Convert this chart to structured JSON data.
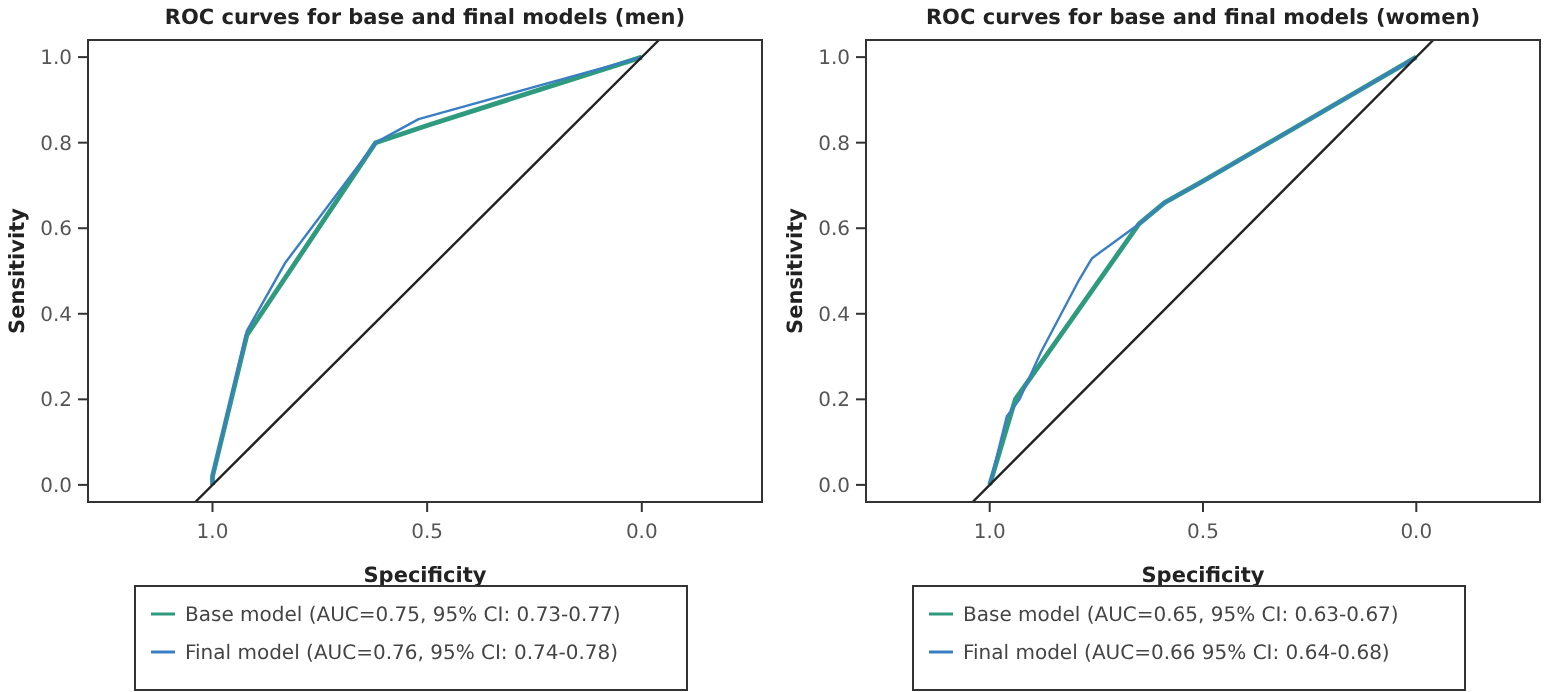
{
  "chart_data": [
    {
      "type": "line",
      "title": "ROC curves for base and final models (men)",
      "xlabel": "Specificity",
      "ylabel": "Sensitivity",
      "xlim": [
        1.29,
        -0.28
      ],
      "ylim": [
        -0.04,
        1.04
      ],
      "xticks": [
        {
          "value": 1.0,
          "label": "1.0"
        },
        {
          "value": 0.5,
          "label": "0.5"
        },
        {
          "value": 0.0,
          "label": "0.0"
        }
      ],
      "yticks": [
        {
          "value": 0.0,
          "label": "0.0"
        },
        {
          "value": 0.2,
          "label": "0.2"
        },
        {
          "value": 0.4,
          "label": "0.4"
        },
        {
          "value": 0.6,
          "label": "0.6"
        },
        {
          "value": 0.8,
          "label": "0.8"
        },
        {
          "value": 1.0,
          "label": "1.0"
        }
      ],
      "grid": false,
      "legend": "bottom",
      "marker": "none",
      "line_style": "solid",
      "series": [
        {
          "name": "Base model (AUC=0.75, 95% CI: 0.73-0.77)",
          "color": "#2e9a7e",
          "x": [
            1.0,
            1.0,
            0.92,
            0.62,
            0.5,
            0.0
          ],
          "values": [
            0.0,
            0.02,
            0.35,
            0.8,
            0.84,
            1.0
          ]
        },
        {
          "name": "Final model (AUC=0.76, 95% CI: 0.74-0.78)",
          "color": "#3a7fc4",
          "x": [
            1.0,
            1.0,
            0.92,
            0.83,
            0.62,
            0.52,
            0.0
          ],
          "values": [
            0.0,
            0.02,
            0.36,
            0.52,
            0.8,
            0.855,
            1.0
          ]
        },
        {
          "color": "#222222",
          "x": [
            1.04,
            -0.04
          ],
          "values": [
            -0.04,
            1.04
          ]
        }
      ]
    },
    {
      "type": "line",
      "title": "ROC curves for base and final models (women)",
      "xlabel": "Specificity",
      "ylabel": "Sensitivity",
      "xlim": [
        1.29,
        -0.29
      ],
      "ylim": [
        -0.04,
        1.04
      ],
      "xticks": [
        {
          "value": 1.0,
          "label": "1.0"
        },
        {
          "value": 0.5,
          "label": "0.5"
        },
        {
          "value": 0.0,
          "label": "0.0"
        }
      ],
      "yticks": [
        {
          "value": 0.0,
          "label": "0.0"
        },
        {
          "value": 0.2,
          "label": "0.2"
        },
        {
          "value": 0.4,
          "label": "0.4"
        },
        {
          "value": 0.6,
          "label": "0.6"
        },
        {
          "value": 0.8,
          "label": "0.8"
        },
        {
          "value": 1.0,
          "label": "1.0"
        }
      ],
      "grid": false,
      "legend": "bottom",
      "marker": "none",
      "line_style": "solid",
      "series": [
        {
          "name": "Base model (AUC=0.65, 95% CI: 0.63-0.67)",
          "color": "#2e9a7e",
          "x": [
            1.0,
            0.94,
            0.65,
            0.59,
            0.5,
            0.0
          ],
          "values": [
            0.0,
            0.2,
            0.61,
            0.66,
            0.71,
            1.0
          ]
        },
        {
          "name": "Final model (AUC=0.66 95% CI: 0.64-0.68)",
          "color": "#3a7fc4",
          "x": [
            1.0,
            0.96,
            0.93,
            0.88,
            0.79,
            0.76,
            0.65,
            0.59,
            0.5,
            0.0
          ],
          "values": [
            0.0,
            0.16,
            0.2,
            0.31,
            0.48,
            0.53,
            0.61,
            0.66,
            0.71,
            1.0
          ]
        },
        {
          "color": "#222222",
          "x": [
            1.04,
            -0.04
          ],
          "values": [
            -0.04,
            1.04
          ]
        }
      ]
    }
  ]
}
